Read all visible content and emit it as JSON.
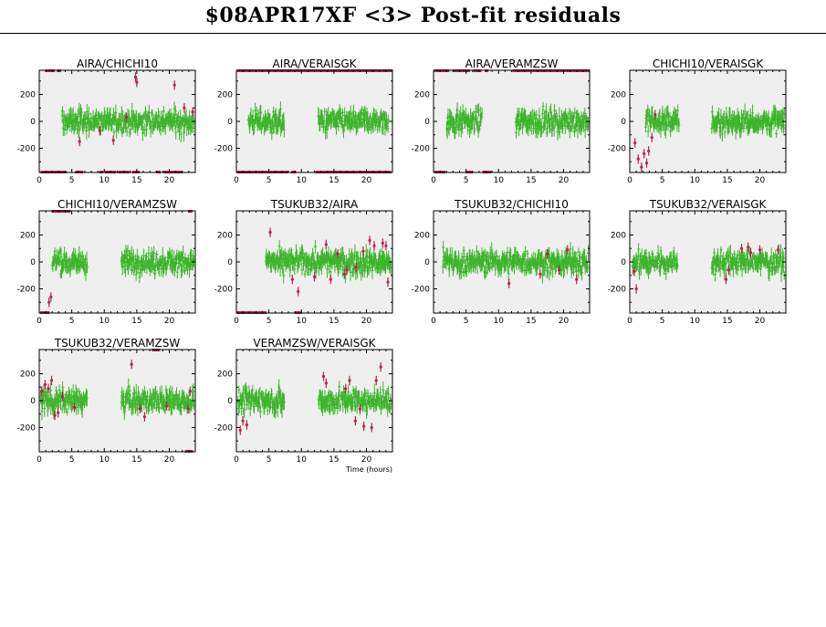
{
  "page": {
    "title": "$08APR17XF <3> Post-fit residuals"
  },
  "colors": {
    "good": "#3cb52a",
    "flagged": "#b8234a",
    "panel_bg": "#efefef",
    "axis": "#000000"
  },
  "chart_data": [
    {
      "type": "scatter",
      "title": "AIRA/CHICHI10",
      "xlim": [
        0,
        24
      ],
      "ylim": [
        -380,
        380
      ],
      "xticks": [
        0,
        5,
        10,
        15,
        20
      ],
      "yticks": [
        -200,
        0,
        200
      ],
      "segments": [
        [
          3.5,
          23.8
        ]
      ],
      "flagged_points": [
        [
          6.2,
          -150
        ],
        [
          9.3,
          -70
        ],
        [
          11.4,
          -140
        ],
        [
          13.4,
          30
        ],
        [
          14.8,
          330
        ],
        [
          15.0,
          290
        ],
        [
          20.8,
          270
        ],
        [
          22.3,
          100
        ],
        [
          23.6,
          70
        ]
      ],
      "flag_ticks_top": [
        [
          1.0,
          2.4
        ],
        [
          2.8,
          3.4
        ]
      ],
      "flag_ticks_bottom": [
        [
          0.3,
          4.2
        ],
        [
          5.6,
          6.8
        ],
        [
          9.3,
          9.8
        ],
        [
          10.2,
          11.8
        ],
        [
          12.2,
          13.8
        ],
        [
          14.4,
          15.4
        ],
        [
          18.1,
          18.7
        ],
        [
          19.2,
          22.0
        ]
      ]
    },
    {
      "type": "scatter",
      "title": "AIRA/VERAISGK",
      "xlim": [
        0,
        24
      ],
      "ylim": [
        -380,
        380
      ],
      "xticks": [
        0,
        5,
        10,
        15,
        20
      ],
      "yticks": [
        -200,
        0,
        200
      ],
      "segments": [
        [
          1.8,
          7.4
        ],
        [
          12.6,
          23.4
        ]
      ],
      "flagged_points": [],
      "flag_ticks_top": [
        [
          0.2,
          24
        ]
      ],
      "flag_ticks_bottom": [
        [
          0.2,
          8.0
        ],
        [
          8.5,
          9.2
        ],
        [
          12.2,
          23.8
        ]
      ]
    },
    {
      "type": "scatter",
      "title": "AIRA/VERAMZSW",
      "xlim": [
        0,
        24
      ],
      "ylim": [
        -380,
        380
      ],
      "xticks": [
        0,
        5,
        10,
        15,
        20
      ],
      "yticks": [
        -200,
        0,
        200
      ],
      "segments": [
        [
          2.0,
          7.5
        ],
        [
          12.6,
          23.8
        ]
      ],
      "flagged_points": [],
      "flag_ticks_top": [
        [
          0.2,
          2.4
        ],
        [
          3.0,
          5.6
        ],
        [
          6.2,
          7.4
        ],
        [
          8.0,
          8.4
        ],
        [
          12.2,
          24
        ]
      ],
      "flag_ticks_bottom": [
        [
          0.2,
          1.8
        ],
        [
          5.0,
          6.0
        ],
        [
          7.6,
          8.8
        ]
      ]
    },
    {
      "type": "scatter",
      "title": "CHICHI10/VERAISGK",
      "xlim": [
        0,
        24
      ],
      "ylim": [
        -380,
        380
      ],
      "xticks": [
        0,
        5,
        10,
        15,
        20
      ],
      "yticks": [
        -200,
        0,
        200
      ],
      "segments": [
        [
          2.4,
          7.6
        ],
        [
          12.6,
          23.8
        ]
      ],
      "flagged_points": [
        [
          0.8,
          -160
        ],
        [
          1.3,
          -280
        ],
        [
          1.8,
          -340
        ],
        [
          2.2,
          -240
        ],
        [
          2.6,
          -310
        ],
        [
          2.9,
          -220
        ],
        [
          3.4,
          -120
        ],
        [
          3.9,
          50
        ]
      ],
      "flag_ticks_top": [],
      "flag_ticks_bottom": []
    },
    {
      "type": "scatter",
      "title": "CHICHI10/VERAMZSW",
      "xlim": [
        0,
        24
      ],
      "ylim": [
        -380,
        380
      ],
      "xticks": [
        0,
        5,
        10,
        15,
        20
      ],
      "yticks": [
        -200,
        0,
        200
      ],
      "segments": [
        [
          2.0,
          7.4
        ],
        [
          12.6,
          23.8
        ]
      ],
      "flagged_points": [
        [
          1.5,
          -300
        ],
        [
          1.8,
          -260
        ]
      ],
      "flag_ticks_top": [
        [
          2.0,
          4.8
        ],
        [
          23.0,
          23.6
        ]
      ],
      "flag_ticks_bottom": [
        [
          0.2,
          1.6
        ]
      ]
    },
    {
      "type": "scatter",
      "title": "TSUKUB32/AIRA",
      "xlim": [
        0,
        24
      ],
      "ylim": [
        -380,
        380
      ],
      "xticks": [
        0,
        5,
        10,
        15,
        20
      ],
      "yticks": [
        -200,
        0,
        200
      ],
      "segments": [
        [
          4.5,
          23.8
        ]
      ],
      "flagged_points": [
        [
          5.2,
          220
        ],
        [
          8.6,
          -130
        ],
        [
          9.5,
          -220
        ],
        [
          12.0,
          -110
        ],
        [
          13.8,
          130
        ],
        [
          14.5,
          -130
        ],
        [
          15.6,
          60
        ],
        [
          17.0,
          -60
        ],
        [
          18.4,
          -40
        ],
        [
          19.5,
          80
        ],
        [
          20.5,
          160
        ],
        [
          21.2,
          120
        ],
        [
          22.5,
          140
        ],
        [
          23.3,
          -150
        ],
        [
          23.0,
          120
        ],
        [
          16.6,
          -90
        ]
      ],
      "flag_ticks_top": [],
      "flag_ticks_bottom": [
        [
          0.1,
          4.6
        ],
        [
          9.0,
          10.0
        ]
      ]
    },
    {
      "type": "scatter",
      "title": "TSUKUB32/CHICHI10",
      "xlim": [
        0,
        24
      ],
      "ylim": [
        -380,
        380
      ],
      "xticks": [
        0,
        5,
        10,
        15,
        20
      ],
      "yticks": [
        -200,
        0,
        200
      ],
      "segments": [
        [
          1.4,
          23.8
        ]
      ],
      "flagged_points": [
        [
          11.6,
          -160
        ],
        [
          16.4,
          -90
        ],
        [
          17.5,
          60
        ],
        [
          19.3,
          -60
        ],
        [
          20.6,
          90
        ],
        [
          22.0,
          -130
        ]
      ],
      "flag_ticks_top": [],
      "flag_ticks_bottom": []
    },
    {
      "type": "scatter",
      "title": "TSUKUB32/VERAISGK",
      "xlim": [
        0,
        24
      ],
      "ylim": [
        -380,
        380
      ],
      "xticks": [
        0,
        5,
        10,
        15,
        20
      ],
      "yticks": [
        -200,
        0,
        200
      ],
      "segments": [
        [
          0.4,
          7.4
        ],
        [
          12.6,
          23.8
        ]
      ],
      "flagged_points": [
        [
          0.7,
          -70
        ],
        [
          1.0,
          -200
        ],
        [
          14.8,
          -130
        ],
        [
          15.2,
          -60
        ],
        [
          17.2,
          100
        ],
        [
          18.2,
          110
        ],
        [
          18.6,
          70
        ],
        [
          20.0,
          90
        ],
        [
          22.8,
          90
        ]
      ],
      "flag_ticks_top": [],
      "flag_ticks_bottom": []
    },
    {
      "type": "scatter",
      "title": "TSUKUB32/VERAMZSW",
      "xlim": [
        0,
        24
      ],
      "ylim": [
        -380,
        380
      ],
      "xticks": [
        0,
        5,
        10,
        15,
        20
      ],
      "yticks": [
        -200,
        0,
        200
      ],
      "segments": [
        [
          0.2,
          7.4
        ],
        [
          12.6,
          23.8
        ]
      ],
      "flagged_points": [
        [
          0.4,
          70
        ],
        [
          0.9,
          120
        ],
        [
          1.4,
          90
        ],
        [
          1.9,
          150
        ],
        [
          2.4,
          -110
        ],
        [
          2.9,
          -90
        ],
        [
          3.6,
          30
        ],
        [
          5.4,
          -50
        ],
        [
          14.2,
          270
        ],
        [
          15.5,
          -60
        ],
        [
          16.2,
          -120
        ],
        [
          19.6,
          -40
        ],
        [
          23.2,
          70
        ],
        [
          22.9,
          -60
        ]
      ],
      "flag_ticks_top": [
        [
          17.4,
          18.6
        ]
      ],
      "flag_ticks_bottom": [
        [
          22.5,
          23.6
        ]
      ]
    },
    {
      "type": "scatter",
      "title": "VERAMZSW/VERAISGK",
      "xlim": [
        0,
        24
      ],
      "ylim": [
        -380,
        380
      ],
      "xticks": [
        0,
        5,
        10,
        15,
        20
      ],
      "yticks": [
        -200,
        0,
        200
      ],
      "xlabel": "Time (hours)",
      "segments": [
        [
          0.2,
          7.4
        ],
        [
          12.6,
          23.8
        ]
      ],
      "flagged_points": [
        [
          0.6,
          -220
        ],
        [
          1.0,
          -150
        ],
        [
          1.6,
          -180
        ],
        [
          13.4,
          180
        ],
        [
          13.8,
          130
        ],
        [
          16.8,
          90
        ],
        [
          17.4,
          150
        ],
        [
          18.3,
          -150
        ],
        [
          19.0,
          -60
        ],
        [
          19.6,
          -190
        ],
        [
          20.8,
          -200
        ],
        [
          21.5,
          150
        ],
        [
          22.2,
          250
        ]
      ],
      "flag_ticks_top": [],
      "flag_ticks_bottom": []
    }
  ]
}
